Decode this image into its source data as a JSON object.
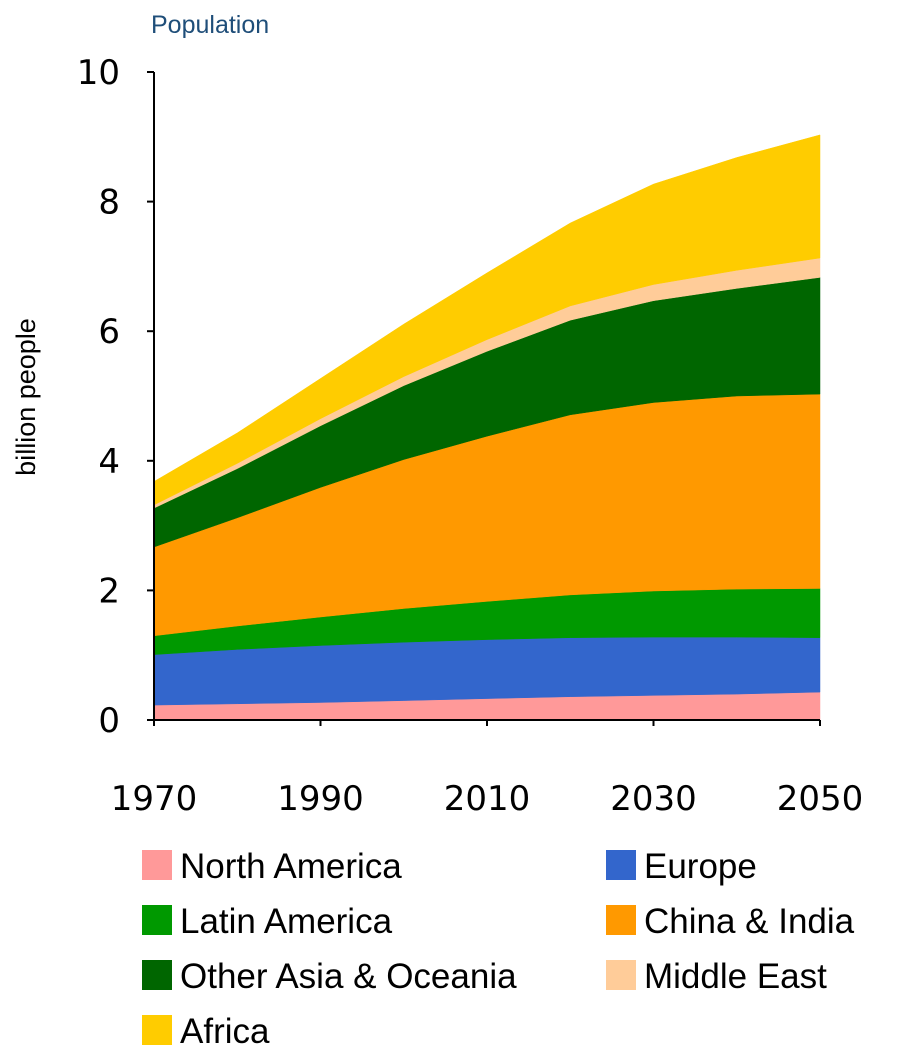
{
  "chart_data": {
    "type": "area",
    "stacked": true,
    "title": "Population",
    "ylabel": "billion people",
    "xlabel": "",
    "ylim": [
      0,
      10
    ],
    "y_ticks": [
      0,
      2,
      4,
      6,
      8,
      10
    ],
    "xlim": [
      1970,
      2050
    ],
    "x_ticks": [
      1970,
      1990,
      2010,
      2030,
      2050
    ],
    "grid": false,
    "legend_position": "bottom",
    "x": [
      1970,
      1980,
      1990,
      2000,
      2010,
      2020,
      2030,
      2040,
      2050
    ],
    "series": [
      {
        "name": "North America",
        "color": "#ff9999",
        "values": [
          0.23,
          0.25,
          0.27,
          0.3,
          0.33,
          0.36,
          0.38,
          0.4,
          0.43
        ]
      },
      {
        "name": "Europe",
        "color": "#3366cc",
        "values": [
          0.78,
          0.84,
          0.88,
          0.9,
          0.91,
          0.91,
          0.9,
          0.88,
          0.84
        ]
      },
      {
        "name": "Latin America",
        "color": "#009900",
        "values": [
          0.29,
          0.36,
          0.44,
          0.52,
          0.59,
          0.66,
          0.71,
          0.74,
          0.76
        ]
      },
      {
        "name": "China & India",
        "color": "#ff9900",
        "values": [
          1.37,
          1.67,
          2.0,
          2.3,
          2.55,
          2.78,
          2.91,
          2.98,
          3.0
        ]
      },
      {
        "name": "Other Asia & Oceania",
        "color": "#006600",
        "values": [
          0.6,
          0.76,
          0.95,
          1.14,
          1.31,
          1.46,
          1.57,
          1.66,
          1.8
        ]
      },
      {
        "name": "Middle East",
        "color": "#ffcc99",
        "values": [
          0.05,
          0.08,
          0.11,
          0.14,
          0.18,
          0.22,
          0.25,
          0.28,
          0.3
        ]
      },
      {
        "name": "Africa",
        "color": "#ffcc00",
        "values": [
          0.36,
          0.47,
          0.62,
          0.81,
          1.03,
          1.28,
          1.55,
          1.74,
          1.9
        ]
      }
    ]
  }
}
